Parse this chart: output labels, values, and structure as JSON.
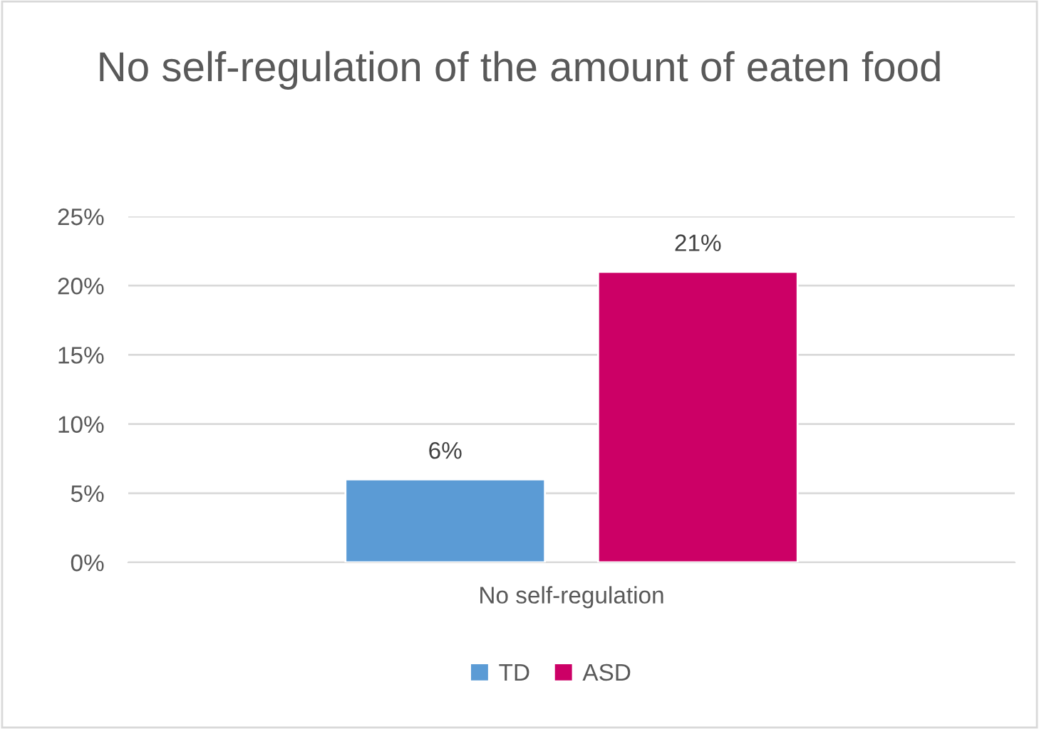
{
  "chart_data": {
    "type": "bar",
    "title": "No self-regulation of the amount of eaten food",
    "categories": [
      "No self-regulation"
    ],
    "series": [
      {
        "name": "TD",
        "color": "#5b9bd5",
        "values": [
          6
        ],
        "value_labels": [
          "6%"
        ]
      },
      {
        "name": "ASD",
        "color": "#cc0066",
        "values": [
          21
        ],
        "value_labels": [
          "21%"
        ]
      }
    ],
    "ylim": [
      0,
      25
    ],
    "yticks": [
      {
        "value": 0,
        "label": "0%"
      },
      {
        "value": 5,
        "label": "5%"
      },
      {
        "value": 10,
        "label": "10%"
      },
      {
        "value": 15,
        "label": "15%"
      },
      {
        "value": 20,
        "label": "20%"
      },
      {
        "value": 25,
        "label": "25%"
      }
    ],
    "grid": "y",
    "legend": "bottom"
  }
}
